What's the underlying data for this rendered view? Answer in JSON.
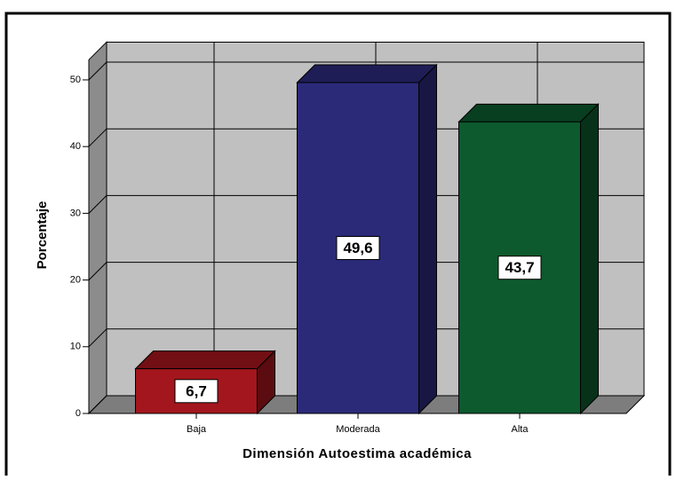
{
  "chart_data": {
    "type": "bar3d",
    "xlabel": "Dimensión Autoestima académica",
    "ylabel": "Porcentaje",
    "categories": [
      "Baja",
      "Moderada",
      "Alta"
    ],
    "values": [
      6.7,
      49.6,
      43.7
    ],
    "value_labels": [
      "6,7",
      "49,6",
      "43,7"
    ],
    "colors": [
      "#a3161d",
      "#2b2a79",
      "#0c5a2e"
    ],
    "ylim": [
      0,
      53
    ],
    "yticks": [
      0,
      10,
      20,
      30,
      40,
      50
    ],
    "grid": true
  }
}
